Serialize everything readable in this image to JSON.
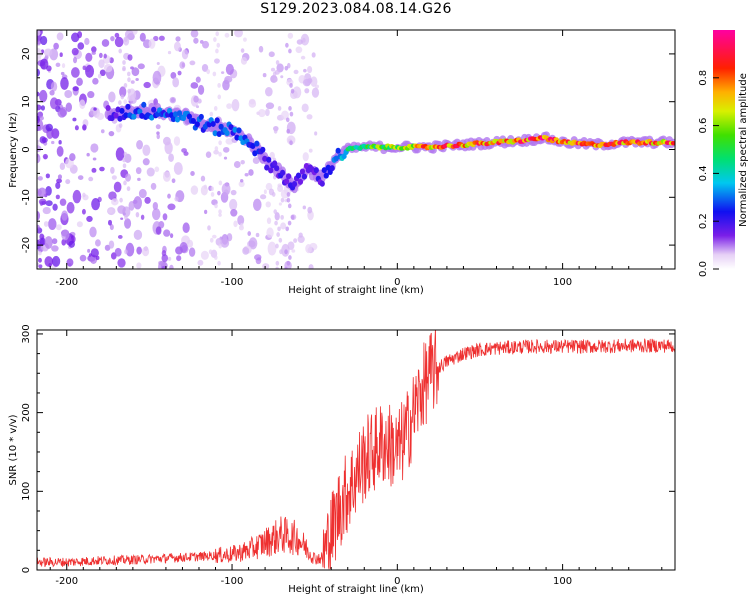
{
  "title": "S129.2023.084.08.14.G26",
  "chart_data": [
    {
      "type": "heatmap",
      "xlabel": "Height of straight line (km)",
      "ylabel": "Frequency (Hz)",
      "xlim": [
        -218,
        168
      ],
      "ylim": [
        -25,
        25
      ],
      "xticks": [
        -200,
        -100,
        0,
        100
      ],
      "yticks": [
        -20,
        -10,
        0,
        10,
        20
      ],
      "xtick_labels": [
        "-200",
        "-100",
        "0",
        "100"
      ],
      "ytick_labels": [
        "-20",
        "-10",
        "0",
        "10",
        "20"
      ],
      "colorbar": {
        "label": "Normalized spectral amplitude",
        "range": [
          0,
          1
        ],
        "ticks": [
          0.0,
          0.2,
          0.4,
          0.6,
          0.8
        ],
        "tick_labels": [
          "0.0",
          "0.2",
          "0.4",
          "0.6",
          "0.8"
        ],
        "colormap": "rainbow (white-violet-blue-cyan-green-yellow-red-magenta)"
      },
      "ridge": {
        "x": [
          -175,
          -160,
          -145,
          -130,
          -115,
          -100,
          -90,
          -80,
          -70,
          -62,
          -55,
          -45,
          -38,
          -30,
          -20,
          -10,
          0,
          20,
          40,
          60,
          80,
          88,
          100,
          120,
          140,
          168
        ],
        "freq": [
          7.5,
          8,
          8,
          7,
          5,
          4,
          2,
          -2,
          -5,
          -8,
          -4,
          -6,
          -2,
          0,
          0.5,
          0.5,
          0.5,
          0.5,
          1,
          1.5,
          2,
          2.5,
          1.5,
          1,
          1.5,
          1.5
        ],
        "amplitude": [
          0.15,
          0.3,
          0.3,
          0.3,
          0.3,
          0.3,
          0.3,
          0.2,
          0.2,
          0.2,
          0.2,
          0.2,
          0.3,
          0.45,
          0.55,
          0.6,
          0.65,
          0.85,
          0.85,
          0.85,
          0.9,
          0.95,
          0.9,
          0.85,
          0.85,
          0.85
        ]
      }
    },
    {
      "type": "line",
      "xlabel": "Height of straight line (km)",
      "ylabel": "SNR (10 * v/v)",
      "xlim": [
        -218,
        168
      ],
      "ylim": [
        0,
        305
      ],
      "xticks": [
        -200,
        -100,
        0,
        100
      ],
      "yticks": [
        0,
        100,
        200,
        300
      ],
      "xtick_labels": [
        "-200",
        "-100",
        "0",
        "100"
      ],
      "ytick_labels": [
        "0",
        "100",
        "200",
        "300"
      ],
      "grid": false,
      "color": "#ee3030",
      "series": [
        {
          "x": [
            -218,
            -200,
            -180,
            -160,
            -140,
            -120,
            -100,
            -90,
            -80,
            -70,
            -60,
            -50,
            -45,
            -40,
            -35,
            -30,
            -25,
            -20,
            -15,
            -10,
            -5,
            0,
            5,
            10,
            15,
            20,
            30,
            40,
            50,
            60,
            80,
            100,
            120,
            140,
            168
          ],
          "values": [
            10,
            10,
            12,
            13,
            15,
            17,
            20,
            25,
            35,
            45,
            40,
            15,
            15,
            45,
            80,
            100,
            120,
            140,
            150,
            160,
            160,
            150,
            170,
            200,
            230,
            250,
            265,
            275,
            280,
            282,
            284,
            284,
            284,
            285,
            285
          ]
        }
      ]
    }
  ]
}
